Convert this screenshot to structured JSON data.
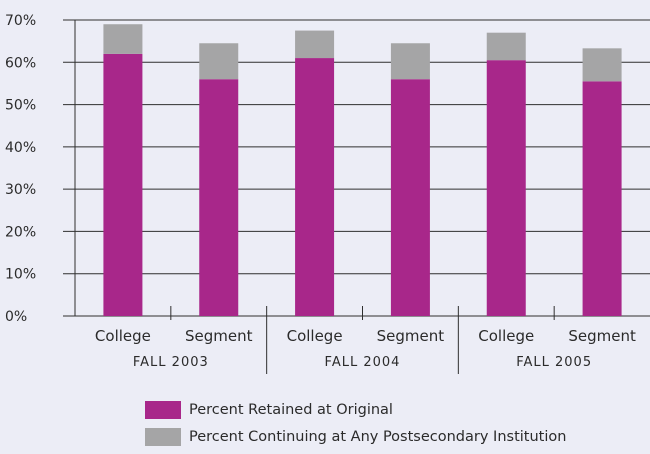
{
  "chart_data": {
    "type": "bar",
    "stacked": true,
    "groups": [
      "FALL 2003",
      "FALL 2004",
      "FALL 2005"
    ],
    "categories": [
      "College",
      "Segment",
      "College",
      "Segment",
      "College",
      "Segment"
    ],
    "group_of_category": [
      0,
      0,
      1,
      1,
      2,
      2
    ],
    "series": [
      {
        "name": "Percent Retained at Original",
        "color": "#a8278a",
        "values": [
          62,
          56,
          61,
          56,
          60.5,
          55.5
        ]
      },
      {
        "name": "Percent Continuing at Any Postsecondary Institution",
        "color": "#a5a5a6",
        "values": [
          7,
          8.5,
          6.5,
          8.5,
          6.5,
          7.8
        ]
      }
    ],
    "ylim": [
      0,
      70
    ],
    "yticks": [
      "0%",
      "10%",
      "20%",
      "30%",
      "40%",
      "50%",
      "60%",
      "70%"
    ],
    "ytick_values": [
      0,
      10,
      20,
      30,
      40,
      50,
      60,
      70
    ],
    "grid": true,
    "legend_position": "bottom"
  }
}
